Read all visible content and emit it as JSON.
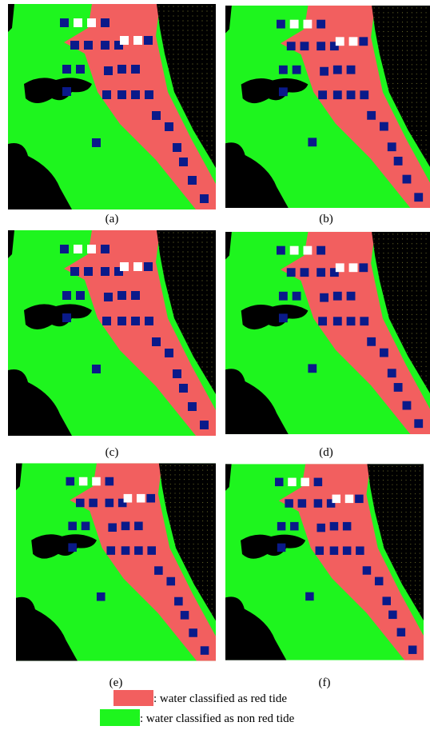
{
  "panels": [
    {
      "label": "(a)"
    },
    {
      "label": "(b)"
    },
    {
      "label": "(c)"
    },
    {
      "label": "(d)"
    },
    {
      "label": "(e)"
    },
    {
      "label": "(f)"
    }
  ],
  "legend": [
    {
      "text": ": water classified as red tide"
    },
    {
      "text": ": water classified as non red tide"
    }
  ]
}
